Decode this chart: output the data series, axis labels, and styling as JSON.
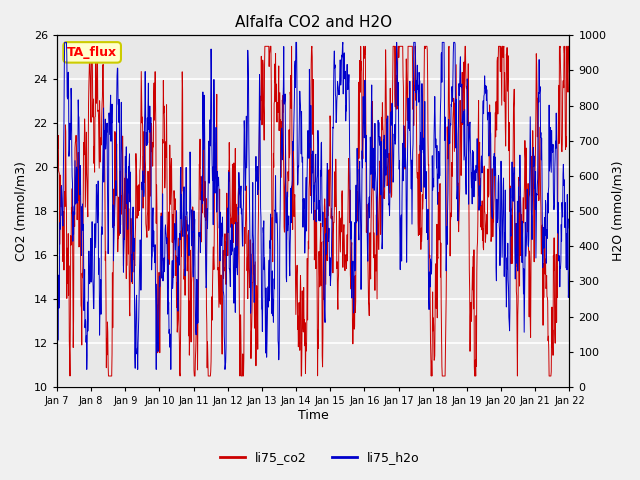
{
  "title": "Alfalfa CO2 and H2O",
  "xlabel": "Time",
  "ylabel_left": "CO2 (mmol/m3)",
  "ylabel_right": "H2O (mmol/m3)",
  "ylim_left": [
    10,
    26
  ],
  "ylim_right": [
    0,
    1000
  ],
  "yticks_left": [
    10,
    12,
    14,
    16,
    18,
    20,
    22,
    24,
    26
  ],
  "yticks_right": [
    0,
    100,
    200,
    300,
    400,
    500,
    600,
    700,
    800,
    900,
    1000
  ],
  "xtick_labels": [
    "Jan 7",
    "Jan 8",
    "Jan 9",
    "Jan 10",
    "Jan 11",
    "Jan 12",
    "Jan 13",
    "Jan 14",
    "Jan 15",
    "Jan 16",
    "Jan 17",
    "Jan 18",
    "Jan 19",
    "Jan 20",
    "Jan 21",
    "Jan 22"
  ],
  "annotation_text": "TA_flux",
  "annotation_bg": "#ffffcc",
  "annotation_border": "#cccc00",
  "line_co2_color": "#cc0000",
  "line_h2o_color": "#0000cc",
  "plot_bg_color": "#e8e8e8",
  "fig_bg_color": "#f0f0f0",
  "grid_color": "#ffffff",
  "legend_co2": "li75_co2",
  "legend_h2o": "li75_h2o",
  "n_days": 15,
  "n_per_day": 96,
  "seed": 7
}
